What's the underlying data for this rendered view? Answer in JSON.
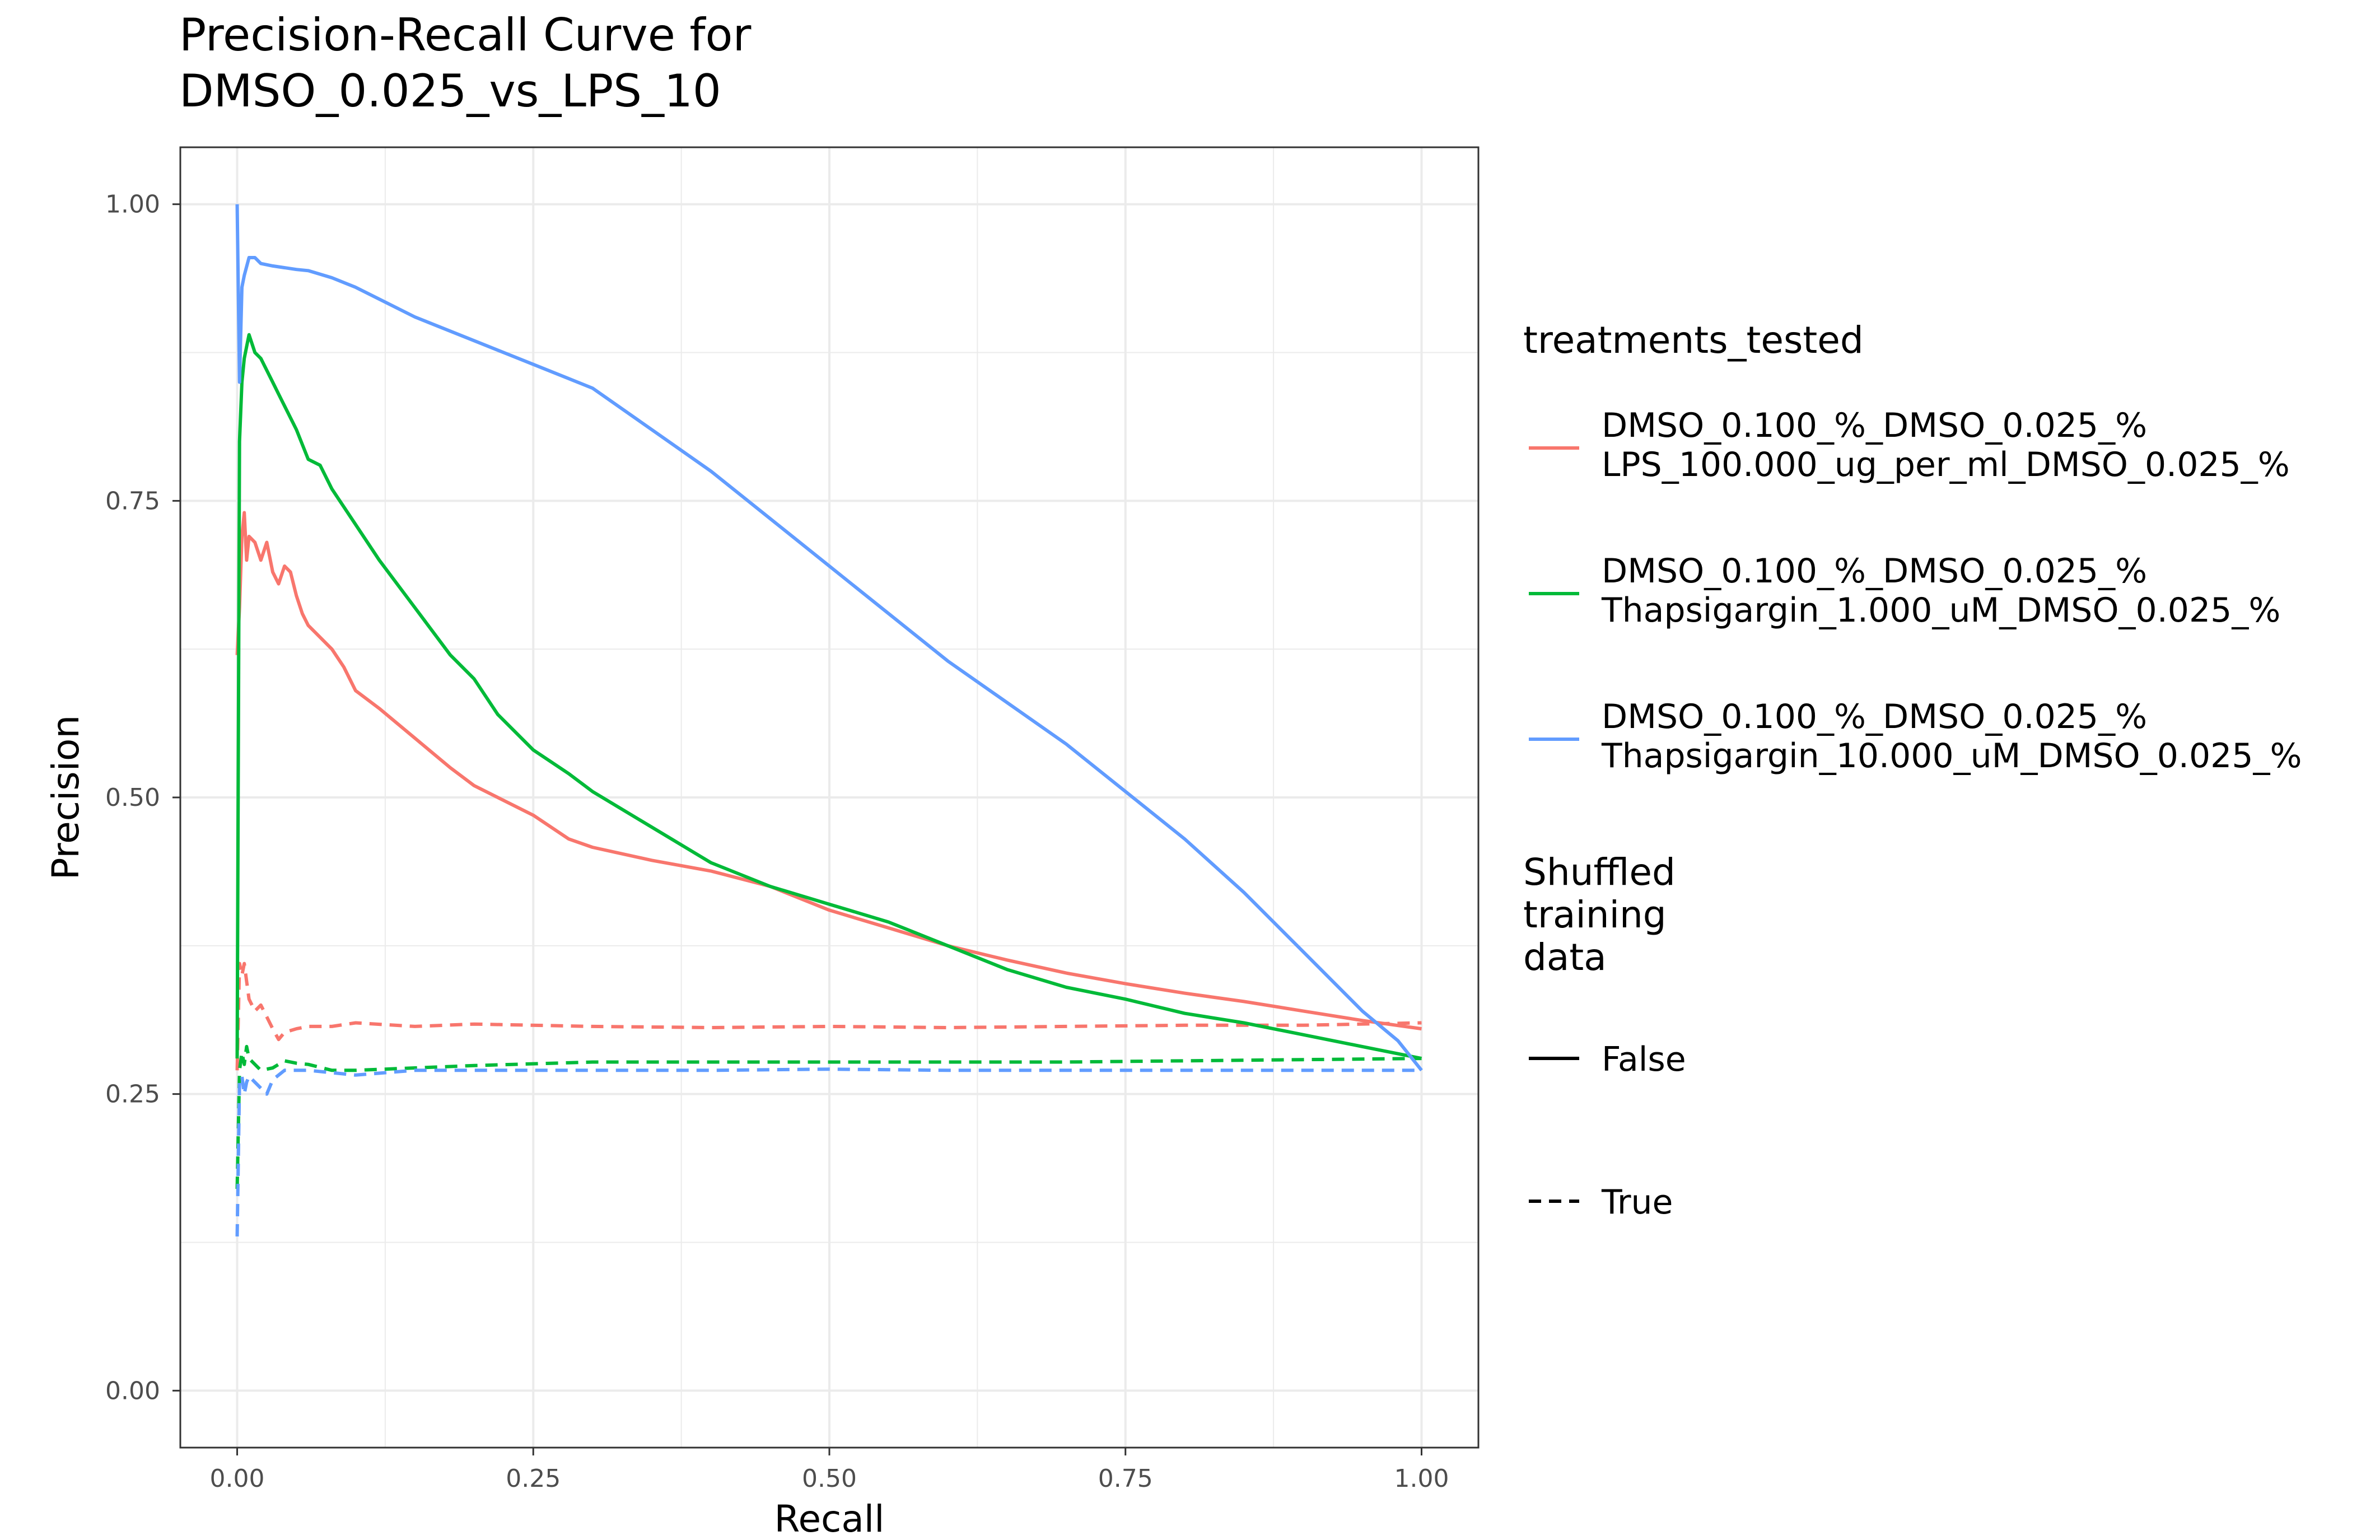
{
  "chart_data": {
    "type": "line",
    "title": "Precision-Recall Curve for\nDMSO_0.025_vs_LPS_10",
    "xlabel": "Recall",
    "ylabel": "Precision",
    "xlim": [
      -0.048,
      1.048
    ],
    "ylim": [
      -0.048,
      1.048
    ],
    "grid": true,
    "legend_placement": "right",
    "x_ticks": [
      0,
      0.25,
      0.5,
      0.75,
      1
    ],
    "x_tick_labels": [
      "0.00",
      "0.25",
      "0.50",
      "0.75",
      "1.00"
    ],
    "y_ticks": [
      0,
      0.25,
      0.5,
      0.75,
      1
    ],
    "y_tick_labels": [
      "0.00",
      "0.25",
      "0.50",
      "0.75",
      "1.00"
    ],
    "legend_color": {
      "title": "treatments_tested",
      "items": [
        {
          "line1": "DMSO_0.100_%_DMSO_0.025_%",
          "line2": "LPS_100.000_ug_per_ml_DMSO_0.025_%",
          "color": "#F8766D"
        },
        {
          "line1": "DMSO_0.100_%_DMSO_0.025_%",
          "line2": "Thapsigargin_1.000_uM_DMSO_0.025_%",
          "color": "#00BA38"
        },
        {
          "line1": "DMSO_0.100_%_DMSO_0.025_%",
          "line2": "Thapsigargin_10.000_uM_DMSO_0.025_%",
          "color": "#619CFF"
        }
      ]
    },
    "legend_linetype": {
      "title": "Shuffled\ntraining\ndata",
      "items": [
        {
          "label": "False",
          "dash": "solid"
        },
        {
          "label": "True",
          "dash": "dashed"
        }
      ]
    },
    "series": [
      {
        "color": "#F8766D",
        "shuffled": "False",
        "points": [
          [
            0,
            0.62
          ],
          [
            0.002,
            0.66
          ],
          [
            0.004,
            0.72
          ],
          [
            0.006,
            0.74
          ],
          [
            0.008,
            0.7
          ],
          [
            0.01,
            0.72
          ],
          [
            0.015,
            0.715
          ],
          [
            0.02,
            0.7
          ],
          [
            0.025,
            0.715
          ],
          [
            0.03,
            0.69
          ],
          [
            0.035,
            0.68
          ],
          [
            0.04,
            0.695
          ],
          [
            0.045,
            0.69
          ],
          [
            0.05,
            0.67
          ],
          [
            0.055,
            0.655
          ],
          [
            0.06,
            0.645
          ],
          [
            0.07,
            0.635
          ],
          [
            0.08,
            0.625
          ],
          [
            0.09,
            0.61
          ],
          [
            0.1,
            0.59
          ],
          [
            0.12,
            0.575
          ],
          [
            0.15,
            0.55
          ],
          [
            0.18,
            0.525
          ],
          [
            0.2,
            0.51
          ],
          [
            0.25,
            0.485
          ],
          [
            0.28,
            0.465
          ],
          [
            0.3,
            0.458
          ],
          [
            0.35,
            0.447
          ],
          [
            0.4,
            0.438
          ],
          [
            0.45,
            0.425
          ],
          [
            0.5,
            0.405
          ],
          [
            0.55,
            0.39
          ],
          [
            0.6,
            0.375
          ],
          [
            0.65,
            0.363
          ],
          [
            0.7,
            0.352
          ],
          [
            0.75,
            0.343
          ],
          [
            0.8,
            0.335
          ],
          [
            0.85,
            0.328
          ],
          [
            0.9,
            0.32
          ],
          [
            0.95,
            0.312
          ],
          [
            1.0,
            0.305
          ]
        ]
      },
      {
        "color": "#00BA38",
        "shuffled": "False",
        "points": [
          [
            0,
            0.28
          ],
          [
            0.002,
            0.8
          ],
          [
            0.004,
            0.85
          ],
          [
            0.006,
            0.87
          ],
          [
            0.008,
            0.88
          ],
          [
            0.01,
            0.89
          ],
          [
            0.015,
            0.875
          ],
          [
            0.02,
            0.87
          ],
          [
            0.025,
            0.86
          ],
          [
            0.03,
            0.85
          ],
          [
            0.035,
            0.84
          ],
          [
            0.04,
            0.83
          ],
          [
            0.05,
            0.81
          ],
          [
            0.06,
            0.785
          ],
          [
            0.07,
            0.78
          ],
          [
            0.08,
            0.76
          ],
          [
            0.1,
            0.73
          ],
          [
            0.12,
            0.7
          ],
          [
            0.15,
            0.66
          ],
          [
            0.18,
            0.62
          ],
          [
            0.2,
            0.6
          ],
          [
            0.22,
            0.57
          ],
          [
            0.25,
            0.54
          ],
          [
            0.28,
            0.52
          ],
          [
            0.3,
            0.505
          ],
          [
            0.35,
            0.475
          ],
          [
            0.4,
            0.445
          ],
          [
            0.45,
            0.425
          ],
          [
            0.5,
            0.41
          ],
          [
            0.55,
            0.395
          ],
          [
            0.6,
            0.375
          ],
          [
            0.65,
            0.355
          ],
          [
            0.7,
            0.34
          ],
          [
            0.75,
            0.33
          ],
          [
            0.8,
            0.318
          ],
          [
            0.85,
            0.31
          ],
          [
            0.9,
            0.3
          ],
          [
            0.95,
            0.29
          ],
          [
            1.0,
            0.28
          ]
        ]
      },
      {
        "color": "#619CFF",
        "shuffled": "False",
        "points": [
          [
            0,
            1.0
          ],
          [
            0.002,
            0.85
          ],
          [
            0.004,
            0.93
          ],
          [
            0.006,
            0.94
          ],
          [
            0.01,
            0.955
          ],
          [
            0.015,
            0.955
          ],
          [
            0.02,
            0.95
          ],
          [
            0.03,
            0.948
          ],
          [
            0.05,
            0.945
          ],
          [
            0.06,
            0.944
          ],
          [
            0.08,
            0.938
          ],
          [
            0.1,
            0.93
          ],
          [
            0.12,
            0.92
          ],
          [
            0.15,
            0.905
          ],
          [
            0.2,
            0.885
          ],
          [
            0.25,
            0.865
          ],
          [
            0.3,
            0.845
          ],
          [
            0.35,
            0.81
          ],
          [
            0.4,
            0.775
          ],
          [
            0.45,
            0.735
          ],
          [
            0.5,
            0.695
          ],
          [
            0.55,
            0.655
          ],
          [
            0.6,
            0.615
          ],
          [
            0.65,
            0.58
          ],
          [
            0.7,
            0.545
          ],
          [
            0.75,
            0.505
          ],
          [
            0.8,
            0.465
          ],
          [
            0.85,
            0.42
          ],
          [
            0.9,
            0.37
          ],
          [
            0.95,
            0.32
          ],
          [
            0.98,
            0.295
          ],
          [
            1.0,
            0.27
          ]
        ]
      },
      {
        "color": "#F8766D",
        "shuffled": "True",
        "points": [
          [
            0,
            0.27
          ],
          [
            0.002,
            0.36
          ],
          [
            0.004,
            0.35
          ],
          [
            0.006,
            0.36
          ],
          [
            0.008,
            0.345
          ],
          [
            0.01,
            0.33
          ],
          [
            0.015,
            0.32
          ],
          [
            0.02,
            0.325
          ],
          [
            0.025,
            0.315
          ],
          [
            0.03,
            0.305
          ],
          [
            0.035,
            0.296
          ],
          [
            0.04,
            0.302
          ],
          [
            0.05,
            0.305
          ],
          [
            0.06,
            0.307
          ],
          [
            0.08,
            0.307
          ],
          [
            0.1,
            0.31
          ],
          [
            0.15,
            0.307
          ],
          [
            0.2,
            0.309
          ],
          [
            0.3,
            0.307
          ],
          [
            0.4,
            0.306
          ],
          [
            0.5,
            0.307
          ],
          [
            0.6,
            0.306
          ],
          [
            0.7,
            0.307
          ],
          [
            0.8,
            0.308
          ],
          [
            0.9,
            0.308
          ],
          [
            1.0,
            0.31
          ]
        ]
      },
      {
        "color": "#00BA38",
        "shuffled": "True",
        "points": [
          [
            0,
            0.17
          ],
          [
            0.002,
            0.27
          ],
          [
            0.004,
            0.285
          ],
          [
            0.006,
            0.275
          ],
          [
            0.008,
            0.29
          ],
          [
            0.01,
            0.28
          ],
          [
            0.015,
            0.275
          ],
          [
            0.02,
            0.27
          ],
          [
            0.03,
            0.272
          ],
          [
            0.04,
            0.278
          ],
          [
            0.05,
            0.276
          ],
          [
            0.06,
            0.275
          ],
          [
            0.08,
            0.27
          ],
          [
            0.1,
            0.27
          ],
          [
            0.15,
            0.272
          ],
          [
            0.2,
            0.274
          ],
          [
            0.3,
            0.277
          ],
          [
            0.4,
            0.277
          ],
          [
            0.5,
            0.277
          ],
          [
            0.6,
            0.277
          ],
          [
            0.7,
            0.277
          ],
          [
            0.8,
            0.278
          ],
          [
            0.9,
            0.279
          ],
          [
            1.0,
            0.28
          ]
        ]
      },
      {
        "color": "#619CFF",
        "shuffled": "True",
        "points": [
          [
            0,
            0.13
          ],
          [
            0.002,
            0.26
          ],
          [
            0.004,
            0.265
          ],
          [
            0.006,
            0.25
          ],
          [
            0.008,
            0.26
          ],
          [
            0.01,
            0.265
          ],
          [
            0.015,
            0.26
          ],
          [
            0.02,
            0.255
          ],
          [
            0.025,
            0.25
          ],
          [
            0.03,
            0.262
          ],
          [
            0.04,
            0.27
          ],
          [
            0.06,
            0.27
          ],
          [
            0.08,
            0.268
          ],
          [
            0.1,
            0.266
          ],
          [
            0.15,
            0.27
          ],
          [
            0.2,
            0.27
          ],
          [
            0.3,
            0.27
          ],
          [
            0.4,
            0.27
          ],
          [
            0.5,
            0.271
          ],
          [
            0.6,
            0.27
          ],
          [
            0.7,
            0.27
          ],
          [
            0.8,
            0.27
          ],
          [
            0.9,
            0.27
          ],
          [
            1.0,
            0.27
          ]
        ]
      }
    ]
  }
}
